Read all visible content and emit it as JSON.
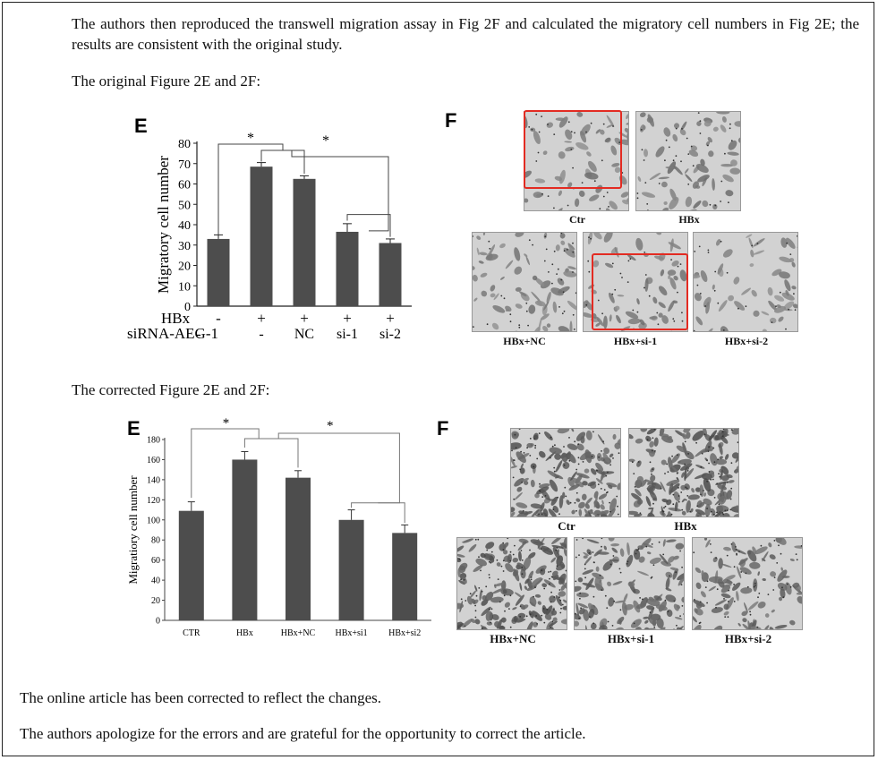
{
  "paragraphs": {
    "p1": "The authors then reproduced the transwell migration assay in Fig 2F and calculated the migratory cell numbers in Fig 2E; the results are consistent with the original study.",
    "p2": "The original Figure 2E and 2F:",
    "p3": "The corrected Figure 2E and 2F:",
    "p4": "The online article has been corrected to reflect the changes.",
    "p5": "The authors apologize for the errors and are grateful for the opportunity to correct the article."
  },
  "original": {
    "panel_e_letter": "E",
    "panel_f_letter": "F",
    "row_labels": [
      "HBx",
      "siRNA-AEG-1"
    ],
    "hbx_signs": [
      "-",
      "+",
      "+",
      "+",
      "+"
    ],
    "sirna_signs": [
      "-",
      "-",
      "NC",
      "si-1",
      "si-2"
    ],
    "significance": [
      "*",
      "*"
    ],
    "images": [
      "Ctr",
      "HBx",
      "HBx+NC",
      "HBx+si-1",
      "HBx+si-2"
    ]
  },
  "corrected": {
    "panel_e_letter": "E",
    "panel_f_letter": "F",
    "significance": [
      "*",
      "*"
    ],
    "images": [
      "Ctr",
      "HBx",
      "HBx+NC",
      "HBx+si-1",
      "HBx+si-2"
    ]
  },
  "colors": {
    "bar": "#4d4d4d",
    "highlight": "#e32b22",
    "frame": "#222222"
  },
  "chart_data": [
    {
      "type": "bar",
      "categories": [
        "",
        "",
        "",
        "",
        ""
      ],
      "values": [
        33,
        68.5,
        62.5,
        36.5,
        31
      ],
      "errors": [
        2,
        2,
        1.5,
        4,
        2
      ],
      "ylabel": "Migratory cell number",
      "ylim": [
        0,
        80
      ],
      "yticks": [
        0,
        10,
        20,
        30,
        40,
        50,
        60,
        70,
        80
      ]
    },
    {
      "type": "bar",
      "categories": [
        "CTR",
        "HBx",
        "HBx+NC",
        "HBx+si1",
        "HBx+si2"
      ],
      "values": [
        109,
        160,
        142,
        100,
        87
      ],
      "errors": [
        9,
        8,
        7,
        10,
        8
      ],
      "ylabel": "Migratiory cell number",
      "ylim": [
        0,
        180
      ],
      "yticks": [
        0,
        20,
        40,
        60,
        80,
        100,
        120,
        140,
        160,
        180
      ]
    }
  ]
}
